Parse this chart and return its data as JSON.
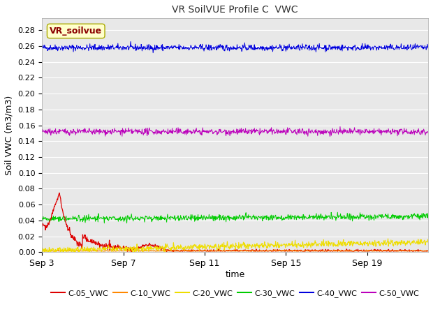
{
  "title": "VR SoilVUE Profile C  VWC",
  "ylabel": "Soil VWC (m3/m3)",
  "xlabel": "time",
  "legend_label": "VR_soilvue",
  "fig_bg_color": "#ffffff",
  "plot_bg_color": "#e8e8e8",
  "ylim": [
    0.0,
    0.295
  ],
  "yticks": [
    0.0,
    0.02,
    0.04,
    0.06,
    0.08,
    0.1,
    0.12,
    0.14,
    0.16,
    0.18,
    0.2,
    0.22,
    0.24,
    0.26,
    0.28
  ],
  "xtick_labels": [
    "Sep 3",
    "Sep 7",
    "Sep 11",
    "Sep 15",
    "Sep 19"
  ],
  "xtick_positions": [
    0,
    4,
    8,
    12,
    16
  ],
  "n_days": 19,
  "series_colors": {
    "C-05_VWC": "#dd0000",
    "C-10_VWC": "#ff8800",
    "C-20_VWC": "#eedd00",
    "C-30_VWC": "#00cc00",
    "C-40_VWC": "#0000dd",
    "C-50_VWC": "#bb00bb"
  }
}
